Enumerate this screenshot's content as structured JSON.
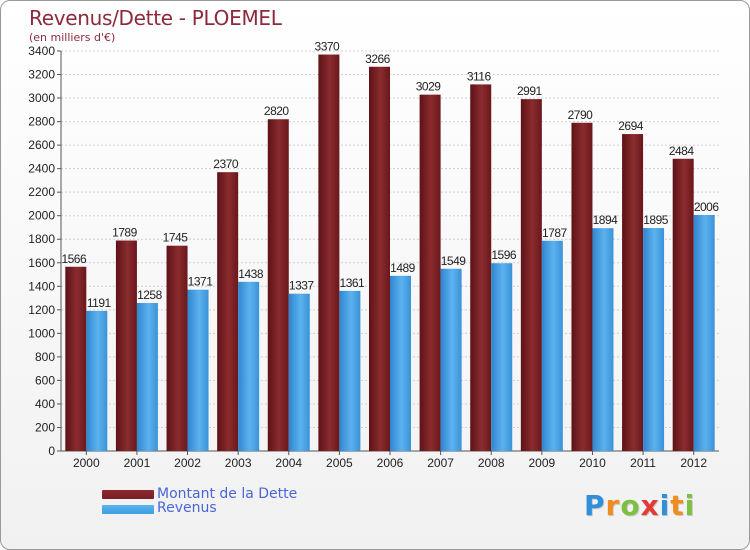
{
  "chart_data": {
    "type": "bar",
    "title": "Revenus/Dette - PLOEMEL",
    "subtitle": "(en milliers d'€)",
    "categories": [
      "2000",
      "2001",
      "2002",
      "2003",
      "2004",
      "2005",
      "2006",
      "2007",
      "2008",
      "2009",
      "2010",
      "2011",
      "2012"
    ],
    "series": [
      {
        "name": "Montant de la Dette",
        "color": "#7a1f24",
        "values": [
          1566,
          1789,
          1745,
          2370,
          2820,
          3370,
          3266,
          3029,
          3116,
          2991,
          2790,
          2694,
          2484
        ]
      },
      {
        "name": "Revenus",
        "color": "#3f9ee0",
        "values": [
          1191,
          1258,
          1371,
          1438,
          1337,
          1361,
          1489,
          1549,
          1596,
          1787,
          1894,
          1895,
          2006
        ]
      }
    ],
    "ylim": [
      0,
      3400
    ],
    "yticks": [
      0,
      200,
      400,
      600,
      800,
      1000,
      1200,
      1400,
      1600,
      1800,
      2000,
      2200,
      2400,
      2600,
      2800,
      3000,
      3200,
      3400
    ],
    "grid": true,
    "legend": "bottom-left"
  },
  "logo": {
    "letters": [
      "P",
      "r",
      "o",
      "x",
      "i",
      "t",
      "i"
    ],
    "colors": [
      "#2f8fd8",
      "#f28c1e",
      "#7cc142",
      "#e23a36",
      "#2f8fd8",
      "#f28c1e",
      "#7cc142"
    ]
  }
}
